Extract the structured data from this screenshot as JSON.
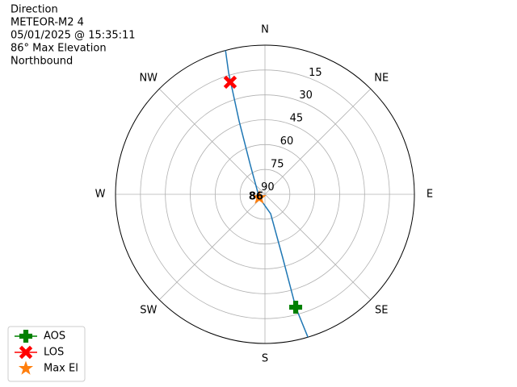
{
  "chart_data": {
    "type": "polar",
    "title_lines": [
      "Direction",
      "METEOR-M2 4",
      "05/01/2025 @ 15:35:11",
      "86° Max Elevation",
      "Northbound"
    ],
    "xticks": [
      {
        "value": 0,
        "label": "N"
      },
      {
        "value": 45,
        "label": "NE"
      },
      {
        "value": 90,
        "label": "E"
      },
      {
        "value": 135,
        "label": "SE"
      },
      {
        "value": 180,
        "label": "S"
      },
      {
        "value": 225,
        "label": "SW"
      },
      {
        "value": 270,
        "label": "W"
      },
      {
        "value": 315,
        "label": "NW"
      }
    ],
    "rlim": [
      90,
      0
    ],
    "rticks": [
      90,
      75,
      60,
      45,
      30,
      15
    ],
    "grid": true,
    "legend": "lower left",
    "series": [
      {
        "type": "line",
        "color": "#1f77b4",
        "x": [
          163.3,
          164.8,
          164.4,
          163.7,
          240,
          333.4,
          340.6,
          343.4,
          344.7
        ],
        "values": [
          0,
          19.4,
          50.1,
          77.8,
          86,
          70.4,
          43.1,
          13.3,
          0
        ]
      },
      {
        "type": "marker",
        "name": "AOS",
        "marker": "plus",
        "color": "#008000",
        "x": [
          164.8
        ],
        "values": [
          19.4
        ]
      },
      {
        "type": "marker",
        "name": "LOS",
        "marker": "x",
        "color": "#ff0000",
        "x": [
          342.8
        ],
        "values": [
          19.2
        ]
      },
      {
        "type": "marker",
        "name": "Max El",
        "marker": "star",
        "color": "#ff7f0e",
        "x": [
          240
        ],
        "values": [
          86
        ],
        "value_labels": [
          "86"
        ]
      }
    ]
  }
}
